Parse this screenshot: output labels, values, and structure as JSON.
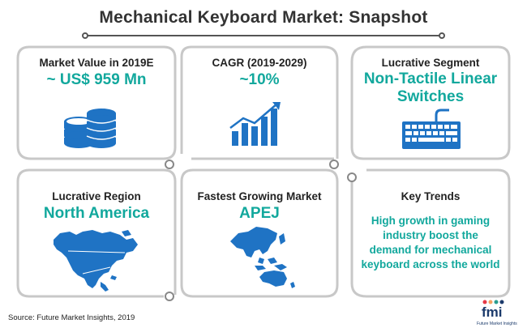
{
  "title": "Mechanical Keyboard Market: Snapshot",
  "cards": [
    {
      "title": "Market Value in 2019E",
      "value": "~ US$ 959 Mn",
      "icon": "database-icon"
    },
    {
      "title": "CAGR (2019-2029)",
      "value": "~10%",
      "icon": "bar-chart-growth-icon"
    },
    {
      "title": "Lucrative Segment",
      "value_line1": "Non-Tactile Linear",
      "value_line2": "Switches",
      "icon": "keyboard-icon"
    },
    {
      "title": "Lucrative Region",
      "value": "North America",
      "icon": "north-america-map-icon"
    },
    {
      "title": "Fastest Growing Market",
      "value": "APEJ",
      "icon": "apej-map-icon"
    },
    {
      "title": "Key Trends",
      "lines": [
        "High growth in gaming",
        "industry boost the",
        "demand for mechanical",
        "keyboard across the world"
      ]
    }
  ],
  "source": "Source: Future Market Insights, 2019",
  "logo": {
    "text": "fmi",
    "subtitle": "Future Market Insights"
  },
  "colors": {
    "accent": "#12a89d",
    "icon_blue": "#1f73c4",
    "border": "#c8c8c8"
  }
}
